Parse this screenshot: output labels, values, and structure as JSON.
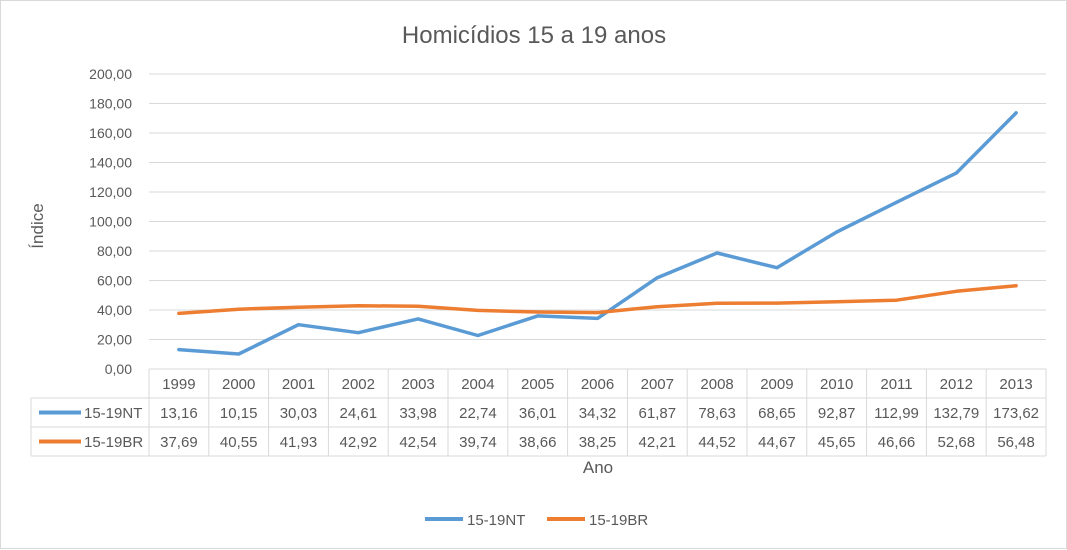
{
  "chart_data": {
    "type": "line",
    "title": "Homicídios 15 a 19 anos",
    "xlabel": "Ano",
    "ylabel": "Índice",
    "ylim": [
      0,
      200
    ],
    "y_ticks": [
      "0,00",
      "20,00",
      "40,00",
      "60,00",
      "80,00",
      "100,00",
      "120,00",
      "140,00",
      "160,00",
      "180,00",
      "200,00"
    ],
    "grid": true,
    "legend_position": "bottom",
    "data_table": true,
    "categories": [
      "1999",
      "2000",
      "2001",
      "2002",
      "2003",
      "2004",
      "2005",
      "2006",
      "2007",
      "2008",
      "2009",
      "2010",
      "2011",
      "2012",
      "2013"
    ],
    "series": [
      {
        "name": "15-19NT",
        "color": "#5b9bd5",
        "values": [
          13.16,
          10.15,
          30.03,
          24.61,
          33.98,
          22.74,
          36.01,
          34.32,
          61.87,
          78.63,
          68.65,
          92.87,
          112.99,
          132.79,
          173.62
        ],
        "labels": [
          "13,16",
          "10,15",
          "30,03",
          "24,61",
          "33,98",
          "22,74",
          "36,01",
          "34,32",
          "61,87",
          "78,63",
          "68,65",
          "92,87",
          "112,99",
          "132,79",
          "173,62"
        ]
      },
      {
        "name": "15-19BR",
        "color": "#ed7d31",
        "values": [
          37.69,
          40.55,
          41.93,
          42.92,
          42.54,
          39.74,
          38.66,
          38.25,
          42.21,
          44.52,
          44.67,
          45.65,
          46.66,
          52.68,
          56.48
        ],
        "labels": [
          "37,69",
          "40,55",
          "41,93",
          "42,92",
          "42,54",
          "39,74",
          "38,66",
          "38,25",
          "42,21",
          "44,52",
          "44,67",
          "45,65",
          "46,66",
          "52,68",
          "56,48"
        ]
      }
    ]
  }
}
